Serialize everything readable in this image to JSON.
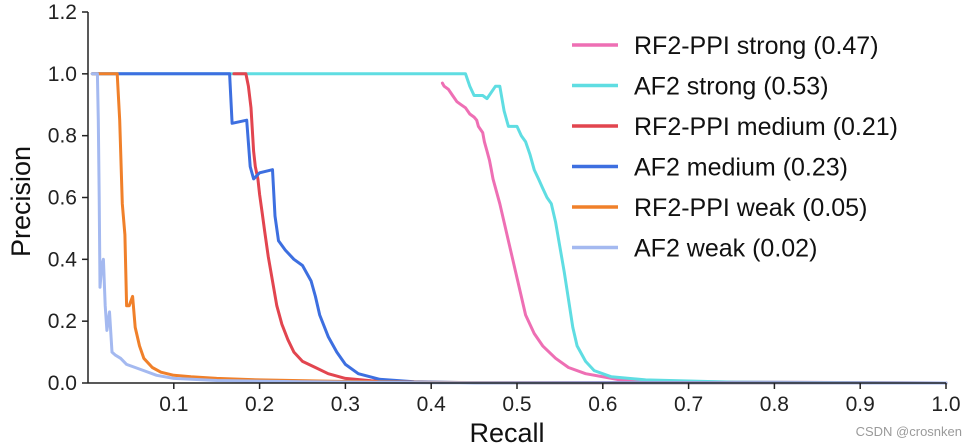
{
  "chart_data": {
    "type": "line",
    "title": "",
    "xlabel": "Recall",
    "ylabel": "Precision",
    "xlim": [
      0.0,
      1.0
    ],
    "ylim": [
      0.0,
      1.2
    ],
    "x_ticks": [
      0.1,
      0.2,
      0.3,
      0.4,
      0.5,
      0.6,
      0.7,
      0.8,
      0.9,
      1.0
    ],
    "x_tick_labels": [
      "0.1",
      "0.2",
      "0.3",
      "0.4",
      "0.5",
      "0.6",
      "0.7",
      "0.8",
      "0.9",
      "1.0"
    ],
    "y_ticks": [
      0.0,
      0.2,
      0.4,
      0.6,
      0.8,
      1.0,
      1.2
    ],
    "y_tick_labels": [
      "0.0",
      "0.2",
      "0.4",
      "0.6",
      "0.8",
      "1.0",
      "1.2"
    ],
    "grid": false,
    "legend_position": "top-right",
    "series": [
      {
        "name": "RF2-PPI strong (0.47)",
        "color": "#ee6fb4",
        "points": [
          [
            0.413,
            0.97
          ],
          [
            0.415,
            0.96
          ],
          [
            0.42,
            0.95
          ],
          [
            0.425,
            0.93
          ],
          [
            0.43,
            0.91
          ],
          [
            0.435,
            0.9
          ],
          [
            0.44,
            0.89
          ],
          [
            0.445,
            0.87
          ],
          [
            0.45,
            0.86
          ],
          [
            0.453,
            0.85
          ],
          [
            0.455,
            0.83
          ],
          [
            0.46,
            0.81
          ],
          [
            0.462,
            0.78
          ],
          [
            0.465,
            0.75
          ],
          [
            0.468,
            0.72
          ],
          [
            0.47,
            0.69
          ],
          [
            0.472,
            0.66
          ],
          [
            0.476,
            0.62
          ],
          [
            0.48,
            0.58
          ],
          [
            0.485,
            0.52
          ],
          [
            0.49,
            0.46
          ],
          [
            0.495,
            0.4
          ],
          [
            0.5,
            0.34
          ],
          [
            0.505,
            0.28
          ],
          [
            0.51,
            0.22
          ],
          [
            0.52,
            0.16
          ],
          [
            0.53,
            0.12
          ],
          [
            0.545,
            0.08
          ],
          [
            0.56,
            0.05
          ],
          [
            0.58,
            0.03
          ],
          [
            0.62,
            0.01
          ],
          [
            0.7,
            0.004
          ],
          [
            1.0,
            0.0
          ]
        ]
      },
      {
        "name": "AF2 strong (0.53)",
        "color": "#5fdde2",
        "points": [
          [
            0.005,
            1.0
          ],
          [
            0.44,
            1.0
          ],
          [
            0.445,
            0.96
          ],
          [
            0.45,
            0.93
          ],
          [
            0.46,
            0.93
          ],
          [
            0.465,
            0.92
          ],
          [
            0.475,
            0.96
          ],
          [
            0.48,
            0.96
          ],
          [
            0.485,
            0.88
          ],
          [
            0.49,
            0.83
          ],
          [
            0.5,
            0.83
          ],
          [
            0.505,
            0.8
          ],
          [
            0.51,
            0.78
          ],
          [
            0.515,
            0.74
          ],
          [
            0.52,
            0.69
          ],
          [
            0.525,
            0.66
          ],
          [
            0.53,
            0.63
          ],
          [
            0.535,
            0.6
          ],
          [
            0.54,
            0.58
          ],
          [
            0.545,
            0.52
          ],
          [
            0.55,
            0.44
          ],
          [
            0.555,
            0.36
          ],
          [
            0.56,
            0.27
          ],
          [
            0.565,
            0.18
          ],
          [
            0.57,
            0.12
          ],
          [
            0.58,
            0.07
          ],
          [
            0.59,
            0.04
          ],
          [
            0.61,
            0.02
          ],
          [
            0.65,
            0.01
          ],
          [
            0.75,
            0.003
          ],
          [
            1.0,
            0.0
          ]
        ]
      },
      {
        "name": "RF2-PPI medium (0.21)",
        "color": "#e2454f",
        "points": [
          [
            0.17,
            1.0
          ],
          [
            0.184,
            1.0
          ],
          [
            0.187,
            0.96
          ],
          [
            0.19,
            0.89
          ],
          [
            0.193,
            0.75
          ],
          [
            0.195,
            0.7
          ],
          [
            0.198,
            0.66
          ],
          [
            0.2,
            0.61
          ],
          [
            0.203,
            0.55
          ],
          [
            0.206,
            0.49
          ],
          [
            0.21,
            0.41
          ],
          [
            0.215,
            0.33
          ],
          [
            0.22,
            0.25
          ],
          [
            0.226,
            0.19
          ],
          [
            0.233,
            0.14
          ],
          [
            0.24,
            0.1
          ],
          [
            0.25,
            0.07
          ],
          [
            0.265,
            0.05
          ],
          [
            0.28,
            0.03
          ],
          [
            0.3,
            0.015
          ],
          [
            0.33,
            0.007
          ],
          [
            0.4,
            0.002
          ],
          [
            1.0,
            0.0
          ]
        ]
      },
      {
        "name": "AF2 medium (0.23)",
        "color": "#3d6fe0",
        "points": [
          [
            0.005,
            1.0
          ],
          [
            0.165,
            1.0
          ],
          [
            0.168,
            0.84
          ],
          [
            0.185,
            0.85
          ],
          [
            0.189,
            0.7
          ],
          [
            0.193,
            0.66
          ],
          [
            0.2,
            0.68
          ],
          [
            0.215,
            0.69
          ],
          [
            0.218,
            0.54
          ],
          [
            0.222,
            0.46
          ],
          [
            0.23,
            0.43
          ],
          [
            0.24,
            0.4
          ],
          [
            0.25,
            0.38
          ],
          [
            0.26,
            0.33
          ],
          [
            0.265,
            0.28
          ],
          [
            0.27,
            0.22
          ],
          [
            0.28,
            0.15
          ],
          [
            0.29,
            0.1
          ],
          [
            0.3,
            0.06
          ],
          [
            0.315,
            0.03
          ],
          [
            0.34,
            0.012
          ],
          [
            0.38,
            0.004
          ],
          [
            0.45,
            0.001
          ],
          [
            1.0,
            0.0
          ]
        ]
      },
      {
        "name": "RF2-PPI weak (0.05)",
        "color": "#f0802a",
        "points": [
          [
            0.005,
            1.0
          ],
          [
            0.034,
            1.0
          ],
          [
            0.037,
            0.85
          ],
          [
            0.04,
            0.58
          ],
          [
            0.043,
            0.48
          ],
          [
            0.045,
            0.25
          ],
          [
            0.048,
            0.25
          ],
          [
            0.052,
            0.28
          ],
          [
            0.055,
            0.18
          ],
          [
            0.06,
            0.12
          ],
          [
            0.065,
            0.08
          ],
          [
            0.075,
            0.05
          ],
          [
            0.085,
            0.035
          ],
          [
            0.1,
            0.025
          ],
          [
            0.12,
            0.02
          ],
          [
            0.15,
            0.015
          ],
          [
            0.2,
            0.01
          ],
          [
            0.3,
            0.005
          ],
          [
            0.4,
            0.002
          ],
          [
            0.6,
            0.0
          ],
          [
            1.0,
            0.0
          ]
        ]
      },
      {
        "name": "AF2 weak (0.02)",
        "color": "#a4b9f0",
        "points": [
          [
            0.005,
            1.0
          ],
          [
            0.011,
            1.0
          ],
          [
            0.012,
            0.85
          ],
          [
            0.013,
            0.6
          ],
          [
            0.014,
            0.31
          ],
          [
            0.016,
            0.38
          ],
          [
            0.018,
            0.4
          ],
          [
            0.02,
            0.25
          ],
          [
            0.022,
            0.17
          ],
          [
            0.025,
            0.23
          ],
          [
            0.028,
            0.1
          ],
          [
            0.032,
            0.09
          ],
          [
            0.038,
            0.08
          ],
          [
            0.045,
            0.06
          ],
          [
            0.055,
            0.05
          ],
          [
            0.065,
            0.04
          ],
          [
            0.08,
            0.025
          ],
          [
            0.1,
            0.015
          ],
          [
            0.15,
            0.008
          ],
          [
            0.25,
            0.004
          ],
          [
            0.4,
            0.001
          ],
          [
            1.0,
            0.0
          ]
        ]
      }
    ]
  },
  "watermark": "CSDN @crosnken"
}
